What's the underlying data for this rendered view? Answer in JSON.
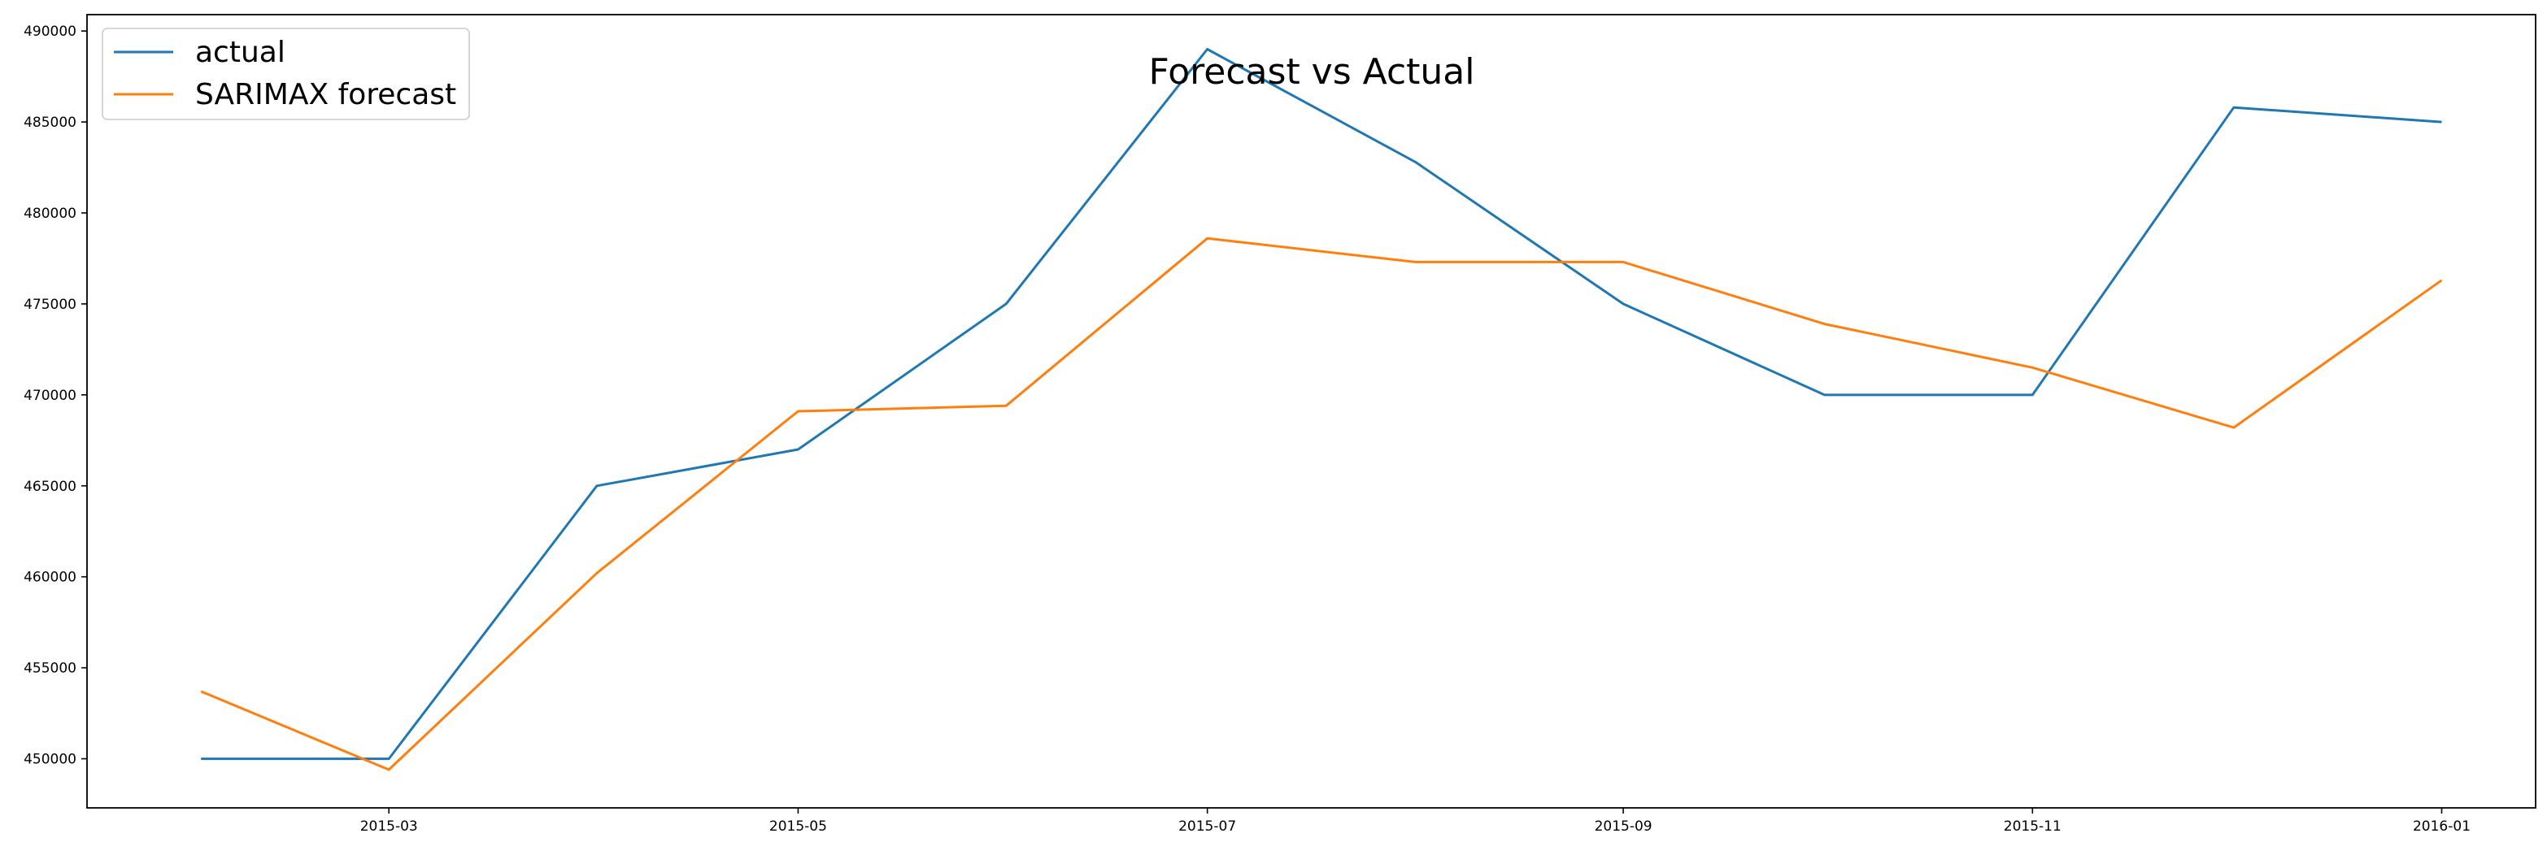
{
  "chart_data": {
    "type": "line",
    "title": "Forecast vs Actual",
    "xlabel": "",
    "ylabel": "",
    "x": [
      "2015-02",
      "2015-03",
      "2015-04",
      "2015-05",
      "2015-06",
      "2015-07",
      "2015-08",
      "2015-09",
      "2015-10",
      "2015-11",
      "2015-12",
      "2016-01"
    ],
    "x_ticks": [
      "2015-03",
      "2015-05",
      "2015-07",
      "2015-09",
      "2015-11",
      "2016-01"
    ],
    "y_ticks": [
      450000,
      455000,
      460000,
      465000,
      470000,
      475000,
      480000,
      485000,
      490000
    ],
    "ylim": [
      447300,
      490900
    ],
    "xlim": [
      "2015-01-15",
      "2016-01-15"
    ],
    "grid": false,
    "legend_position": "top-left",
    "series": [
      {
        "name": "actual",
        "color": "#1f77b4",
        "values": [
          450000,
          450000,
          465000,
          467000,
          475000,
          489000,
          482800,
          475000,
          470000,
          470000,
          485800,
          485000
        ]
      },
      {
        "name": "SARIMAX forecast",
        "color": "#ff7f0e",
        "values": [
          453700,
          449400,
          460200,
          469100,
          469400,
          478600,
          477300,
          477300,
          473900,
          471500,
          468200,
          476300
        ]
      }
    ]
  }
}
